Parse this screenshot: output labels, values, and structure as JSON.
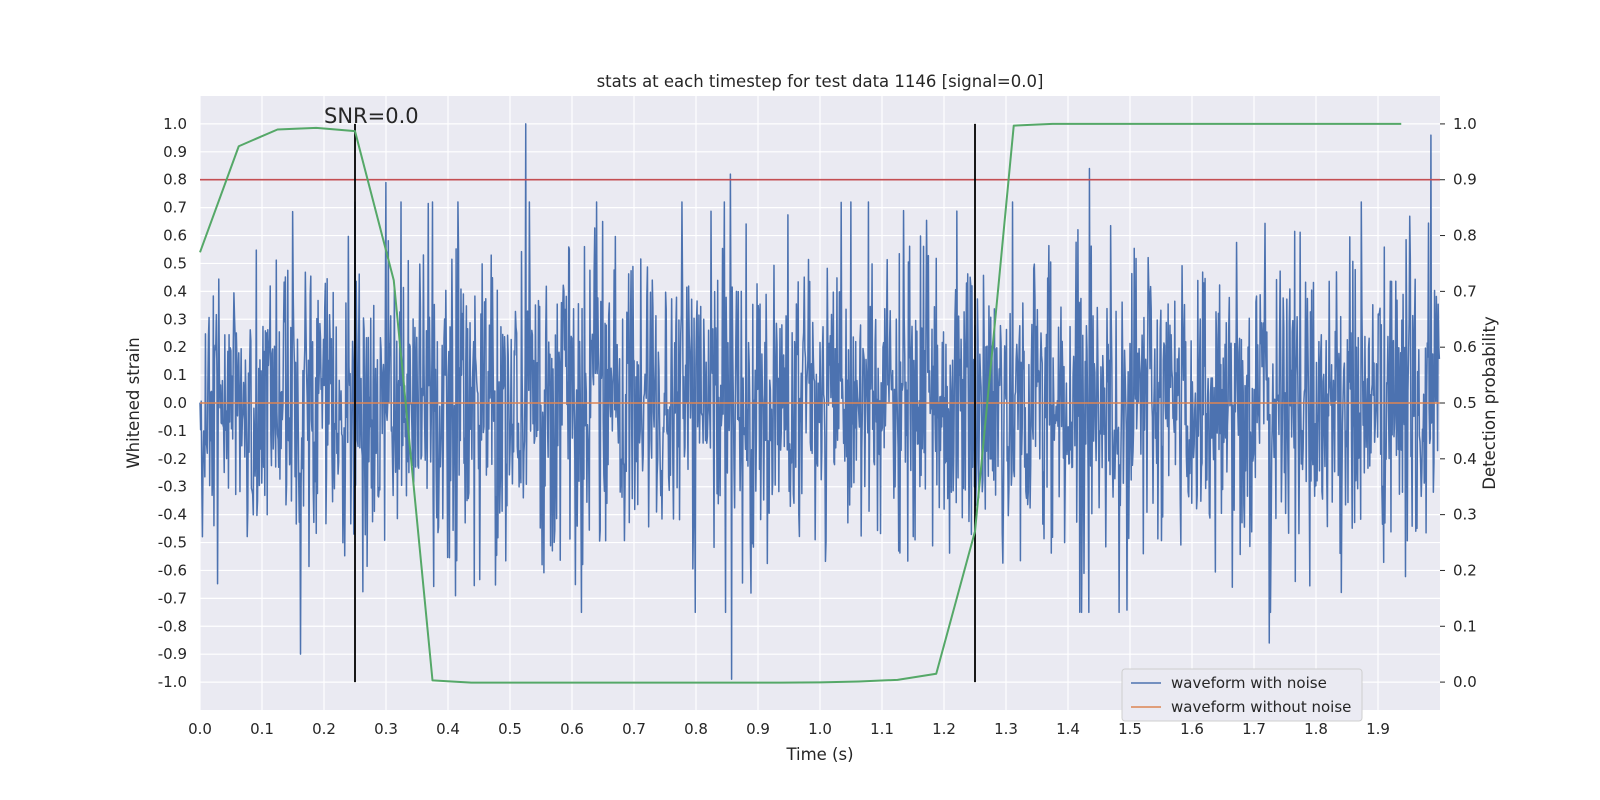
{
  "chart_data": {
    "type": "line",
    "title": "stats at each timestep for test data 1146 [signal=0.0]",
    "xlabel": "Time (s)",
    "ylabel": "Whitened strain",
    "y2label": "Detection probability",
    "annotation": "SNR=0.0",
    "xlim": [
      0.0,
      2.0
    ],
    "ylim": [
      -1.1,
      1.1
    ],
    "y2lim": [
      -0.05,
      1.05
    ],
    "x_ticks": [
      "0.0",
      "0.1",
      "0.2",
      "0.3",
      "0.4",
      "0.5",
      "0.6",
      "0.7",
      "0.8",
      "0.9",
      "1.0",
      "1.1",
      "1.2",
      "1.3",
      "1.4",
      "1.5",
      "1.6",
      "1.7",
      "1.8",
      "1.9"
    ],
    "y_ticks": [
      "1.0",
      "0.9",
      "0.8",
      "0.7",
      "0.6",
      "0.5",
      "0.4",
      "0.3",
      "0.2",
      "0.1",
      "0.0",
      "-0.1",
      "-0.2",
      "-0.3",
      "-0.4",
      "-0.5",
      "-0.6",
      "-0.7",
      "-0.8",
      "-0.9",
      "-1.0"
    ],
    "y2_ticks": [
      "1.0",
      "0.9",
      "0.8",
      "0.7",
      "0.6",
      "0.5",
      "0.4",
      "0.3",
      "0.2",
      "0.1",
      "0.0"
    ],
    "grid": true,
    "legend_position": "lower-right",
    "colors": {
      "noisy": "#4c72b0",
      "clean": "#dd8452",
      "probability": "#55a868",
      "threshold": "#c44e52",
      "marker": "#000000",
      "background": "#eaeaf2"
    },
    "series": [
      {
        "name": "waveform with noise",
        "color": "#4c72b0",
        "note": "dense noise trace, ~2048 samples, amplitude mostly within ±0.6 with peaks near ±1.0",
        "peaks": [
          {
            "x": 0.525,
            "y": 1.0
          },
          {
            "x": 0.855,
            "y": 0.82
          },
          {
            "x": 0.857,
            "y": -0.99
          },
          {
            "x": 0.162,
            "y": -0.9
          },
          {
            "x": 1.435,
            "y": 0.84
          },
          {
            "x": 1.725,
            "y": -0.86
          },
          {
            "x": 1.985,
            "y": 0.96
          },
          {
            "x": 0.3,
            "y": 0.79
          }
        ]
      },
      {
        "name": "waveform without noise",
        "color": "#dd8452",
        "x": [
          0.0,
          2.0
        ],
        "y": [
          0.0,
          0.0
        ]
      },
      {
        "name": "detection probability",
        "axis": "right",
        "color": "#55a868",
        "x": [
          0.0,
          0.0625,
          0.125,
          0.1875,
          0.25,
          0.3125,
          0.375,
          0.4375,
          0.5,
          0.5625,
          0.625,
          0.6875,
          0.75,
          0.8125,
          0.875,
          0.9375,
          1.0,
          1.0625,
          1.125,
          1.1875,
          1.25,
          1.3125,
          1.375,
          1.4375,
          1.5,
          1.5625,
          1.625,
          1.6875,
          1.75,
          1.8125,
          1.875,
          1.9375
        ],
        "y": [
          0.77,
          0.96,
          0.99,
          0.993,
          0.987,
          0.72,
          0.003,
          -0.001,
          -0.001,
          -0.001,
          -0.001,
          -0.001,
          -0.001,
          -0.001,
          -0.001,
          -0.001,
          -0.0005,
          0.001,
          0.004,
          0.015,
          0.27,
          0.997,
          1.0,
          1.0,
          1.0,
          1.0,
          1.0,
          1.0,
          1.0,
          1.0,
          1.0,
          1.0
        ]
      }
    ],
    "threshold_line": {
      "y2": 0.9
    },
    "vertical_markers": [
      0.25,
      1.25
    ],
    "legend": [
      "waveform with noise",
      "waveform without noise"
    ]
  }
}
